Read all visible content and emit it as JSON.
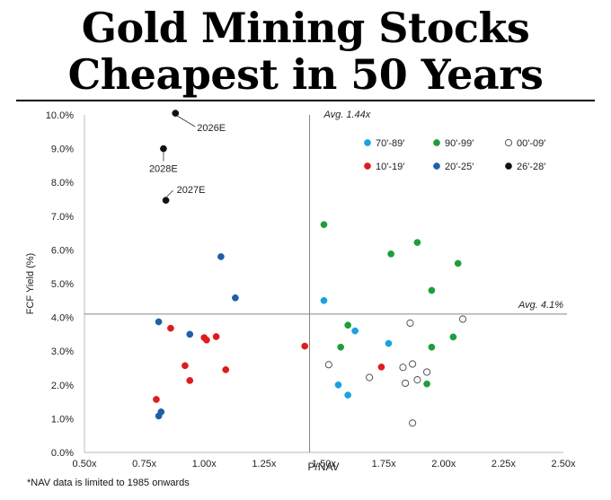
{
  "headline": {
    "line1": "Gold Mining Stocks",
    "line2": "Cheapest in 50 Years"
  },
  "footnote": "*NAV data is limited to 1985 onwards",
  "chart_data": {
    "type": "scatter",
    "xlabel": "P/NAV",
    "ylabel": "FCF Yield (%)",
    "xlim": [
      0.5,
      2.5
    ],
    "ylim": [
      0.0,
      10.0
    ],
    "xticks": [
      0.5,
      0.75,
      1.0,
      1.25,
      1.5,
      1.75,
      2.0,
      2.25,
      2.5
    ],
    "xtick_labels": [
      "0.50x",
      "0.75x",
      "1.00x",
      "1.25x",
      "1.50x",
      "1.75x",
      "2.00x",
      "2.25x",
      "2.50x"
    ],
    "yticks": [
      0,
      1,
      2,
      3,
      4,
      5,
      6,
      7,
      8,
      9,
      10
    ],
    "ytick_labels": [
      "0.0%",
      "1.0%",
      "2.0%",
      "3.0%",
      "4.0%",
      "5.0%",
      "6.0%",
      "7.0%",
      "8.0%",
      "9.0%",
      "10.0%"
    ],
    "grid": false,
    "legend_position": "top-right",
    "reference_lines": [
      {
        "axis": "x",
        "value": 1.44,
        "label": "Avg. 1.44x"
      },
      {
        "axis": "y",
        "value": 4.1,
        "label": "Avg. 4.1%"
      }
    ],
    "series": [
      {
        "name": "70'-89'",
        "color": "#1ba1e2",
        "hollow": false,
        "points": [
          [
            1.5,
            4.5
          ],
          [
            1.63,
            3.6
          ],
          [
            1.77,
            3.23
          ],
          [
            1.56,
            2.0
          ],
          [
            1.6,
            1.7
          ]
        ]
      },
      {
        "name": "90'-99'",
        "color": "#1e9e3a",
        "hollow": false,
        "points": [
          [
            1.5,
            6.75
          ],
          [
            1.89,
            6.22
          ],
          [
            1.78,
            5.88
          ],
          [
            2.06,
            5.6
          ],
          [
            1.95,
            4.8
          ],
          [
            1.6,
            3.77
          ],
          [
            2.04,
            3.42
          ],
          [
            1.57,
            3.12
          ],
          [
            1.95,
            3.12
          ],
          [
            1.93,
            2.03
          ]
        ]
      },
      {
        "name": "00'-09'",
        "color": "#ffffff",
        "stroke": "#555555",
        "hollow": true,
        "points": [
          [
            2.08,
            3.95
          ],
          [
            1.86,
            3.83
          ],
          [
            1.52,
            2.6
          ],
          [
            1.83,
            2.52
          ],
          [
            1.87,
            2.62
          ],
          [
            1.93,
            2.38
          ],
          [
            1.69,
            2.22
          ],
          [
            1.84,
            2.05
          ],
          [
            1.89,
            2.15
          ],
          [
            1.87,
            0.87
          ]
        ]
      },
      {
        "name": "10'-19'",
        "color": "#e01b1b",
        "hollow": false,
        "points": [
          [
            0.86,
            3.68
          ],
          [
            1.05,
            3.43
          ],
          [
            1.0,
            3.4
          ],
          [
            1.01,
            3.33
          ],
          [
            1.42,
            3.15
          ],
          [
            0.92,
            2.57
          ],
          [
            1.09,
            2.45
          ],
          [
            1.74,
            2.53
          ],
          [
            0.94,
            2.13
          ],
          [
            0.8,
            1.57
          ]
        ]
      },
      {
        "name": "20'-25'",
        "color": "#1f5fa8",
        "hollow": false,
        "points": [
          [
            1.07,
            5.8
          ],
          [
            1.13,
            4.58
          ],
          [
            0.81,
            3.87
          ],
          [
            0.94,
            3.5
          ],
          [
            0.82,
            1.2
          ],
          [
            0.81,
            1.08
          ]
        ]
      },
      {
        "name": "26'-28'",
        "color": "#111111",
        "hollow": false,
        "points": [
          [
            0.88,
            10.05,
            "2026E"
          ],
          [
            0.83,
            9.0,
            "2028E"
          ],
          [
            0.84,
            7.47,
            "2027E"
          ]
        ]
      }
    ]
  }
}
